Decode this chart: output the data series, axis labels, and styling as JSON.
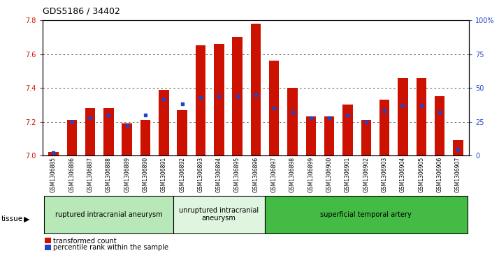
{
  "title": "GDS5186 / 34402",
  "samples": [
    "GSM1306885",
    "GSM1306886",
    "GSM1306887",
    "GSM1306888",
    "GSM1306889",
    "GSM1306890",
    "GSM1306891",
    "GSM1306892",
    "GSM1306893",
    "GSM1306894",
    "GSM1306895",
    "GSM1306896",
    "GSM1306897",
    "GSM1306898",
    "GSM1306899",
    "GSM1306900",
    "GSM1306901",
    "GSM1306902",
    "GSM1306903",
    "GSM1306904",
    "GSM1306905",
    "GSM1306906",
    "GSM1306907"
  ],
  "transformed_count": [
    7.02,
    7.21,
    7.28,
    7.28,
    7.19,
    7.21,
    7.39,
    7.27,
    7.65,
    7.66,
    7.7,
    7.78,
    7.56,
    7.4,
    7.23,
    7.23,
    7.3,
    7.21,
    7.33,
    7.46,
    7.46,
    7.35,
    7.09
  ],
  "percentile_rank": [
    2,
    25,
    28,
    30,
    22,
    30,
    42,
    38,
    43,
    44,
    44,
    45,
    35,
    32,
    28,
    28,
    30,
    25,
    33,
    37,
    37,
    32,
    5
  ],
  "groups": [
    {
      "label": "ruptured intracranial aneurysm",
      "start": 0,
      "end": 7,
      "color": "#b8e8b8"
    },
    {
      "label": "unruptured intracranial\naneurysm",
      "start": 7,
      "end": 12,
      "color": "#dff5df"
    },
    {
      "label": "superficial temporal artery",
      "start": 12,
      "end": 23,
      "color": "#44bb44"
    }
  ],
  "ylim_left": [
    7.0,
    7.8
  ],
  "ylim_right": [
    0,
    100
  ],
  "bar_color": "#cc1100",
  "dot_color": "#2244cc",
  "plot_bg": "#ffffff",
  "fig_bg": "#ffffff",
  "grid_color": "#333333",
  "left_tick_color": "#cc1100",
  "right_tick_color": "#2244cc",
  "xtick_bg": "#cccccc",
  "title_fontsize": 9,
  "tick_fontsize": 7,
  "bar_width": 0.55
}
